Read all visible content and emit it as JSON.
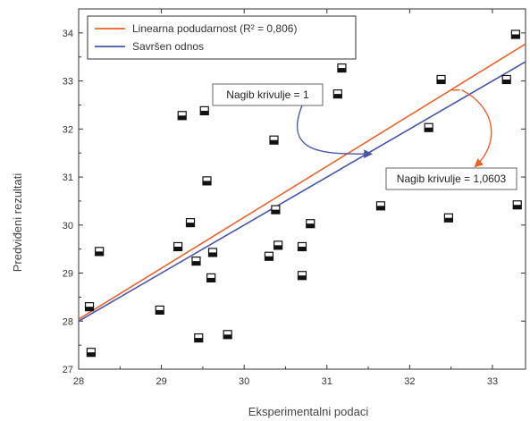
{
  "chart_data": {
    "type": "scatter",
    "xlabel": "Eksperimentalni podaci",
    "ylabel": "Predviđeni rezultati",
    "xlim": [
      28,
      33.4
    ],
    "ylim": [
      27,
      34.5
    ],
    "x_ticks": [
      "28",
      "29",
      "30",
      "31",
      "32",
      "33"
    ],
    "y_ticks": [
      "27",
      "28",
      "29",
      "30",
      "31",
      "32",
      "33",
      "34"
    ],
    "points": [
      {
        "x": 28.13,
        "y": 28.3
      },
      {
        "x": 28.15,
        "y": 27.35
      },
      {
        "x": 28.25,
        "y": 29.45
      },
      {
        "x": 28.98,
        "y": 28.23
      },
      {
        "x": 29.2,
        "y": 29.55
      },
      {
        "x": 29.25,
        "y": 32.28
      },
      {
        "x": 29.35,
        "y": 30.05
      },
      {
        "x": 29.42,
        "y": 29.25
      },
      {
        "x": 29.45,
        "y": 27.65
      },
      {
        "x": 29.52,
        "y": 32.38
      },
      {
        "x": 29.55,
        "y": 30.92
      },
      {
        "x": 29.6,
        "y": 28.9
      },
      {
        "x": 29.62,
        "y": 29.43
      },
      {
        "x": 29.8,
        "y": 27.72
      },
      {
        "x": 30.3,
        "y": 29.35
      },
      {
        "x": 30.36,
        "y": 31.77
      },
      {
        "x": 30.38,
        "y": 30.32
      },
      {
        "x": 30.41,
        "y": 29.58
      },
      {
        "x": 30.7,
        "y": 29.55
      },
      {
        "x": 30.7,
        "y": 28.95
      },
      {
        "x": 30.8,
        "y": 30.03
      },
      {
        "x": 31.13,
        "y": 32.73
      },
      {
        "x": 31.18,
        "y": 33.27
      },
      {
        "x": 31.65,
        "y": 30.4
      },
      {
        "x": 32.23,
        "y": 32.03
      },
      {
        "x": 32.38,
        "y": 33.03
      },
      {
        "x": 32.47,
        "y": 30.15
      },
      {
        "x": 33.17,
        "y": 33.03
      },
      {
        "x": 33.28,
        "y": 33.97
      },
      {
        "x": 33.3,
        "y": 30.42
      }
    ],
    "series": [
      {
        "name": "Linearna podudarnost (R² = 0,806)",
        "color": "#e8622c",
        "slope": 1.0603,
        "x": [
          28,
          33.4
        ],
        "y": [
          28.04,
          33.77
        ]
      },
      {
        "name": "Savršen odnos",
        "color": "#4a54a6",
        "slope": 1,
        "x": [
          28,
          33.4
        ],
        "y": [
          28,
          33.4
        ]
      }
    ],
    "legend_position": "top-left",
    "grid": false,
    "annotations": [
      {
        "text": "Nagib krivulje = 1",
        "target": "Savršen odnos"
      },
      {
        "text": "Nagib krivulje = 1,0603",
        "target": "Linearna podudarnost (R² = 0,806)"
      }
    ],
    "marker_color": "#111111"
  }
}
